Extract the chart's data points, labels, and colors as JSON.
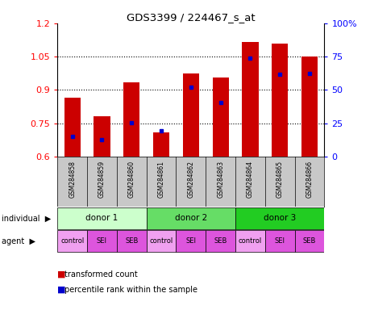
{
  "title": "GDS3399 / 224467_s_at",
  "samples": [
    "GSM284858",
    "GSM284859",
    "GSM284860",
    "GSM284861",
    "GSM284862",
    "GSM284863",
    "GSM284864",
    "GSM284865",
    "GSM284866"
  ],
  "red_values": [
    0.865,
    0.782,
    0.935,
    0.71,
    0.975,
    0.955,
    1.115,
    1.11,
    1.05
  ],
  "blue_values": [
    0.692,
    0.678,
    0.752,
    0.715,
    0.912,
    0.843,
    1.045,
    0.97,
    0.973
  ],
  "ylim_left": [
    0.6,
    1.2
  ],
  "ylim_right": [
    0,
    100
  ],
  "yticks_left": [
    0.6,
    0.75,
    0.9,
    1.05,
    1.2
  ],
  "yticks_right": [
    0,
    25,
    50,
    75,
    100
  ],
  "ytick_labels_left": [
    "0.6",
    "0.75",
    "0.9",
    "1.05",
    "1.2"
  ],
  "ytick_labels_right": [
    "0",
    "25",
    "50",
    "75",
    "100%"
  ],
  "hlines": [
    0.75,
    0.9,
    1.05
  ],
  "bar_color": "#cc0000",
  "blue_color": "#0000cc",
  "sample_bg": "#c8c8c8",
  "individual_colors": [
    "#ccffcc",
    "#66dd66",
    "#22cc22"
  ],
  "individual_labels": [
    "donor 1",
    "donor 2",
    "donor 3"
  ],
  "agent_colors_odd": "#ee88ee",
  "agent_colors_even": "#dd55dd",
  "agent_labels": [
    "control",
    "SEI",
    "SEB",
    "control",
    "SEI",
    "SEB",
    "control",
    "SEI",
    "SEB"
  ],
  "legend_red": "transformed count",
  "legend_blue": "percentile rank within the sample",
  "individual_label": "individual",
  "agent_label": "agent",
  "bar_width": 0.55
}
